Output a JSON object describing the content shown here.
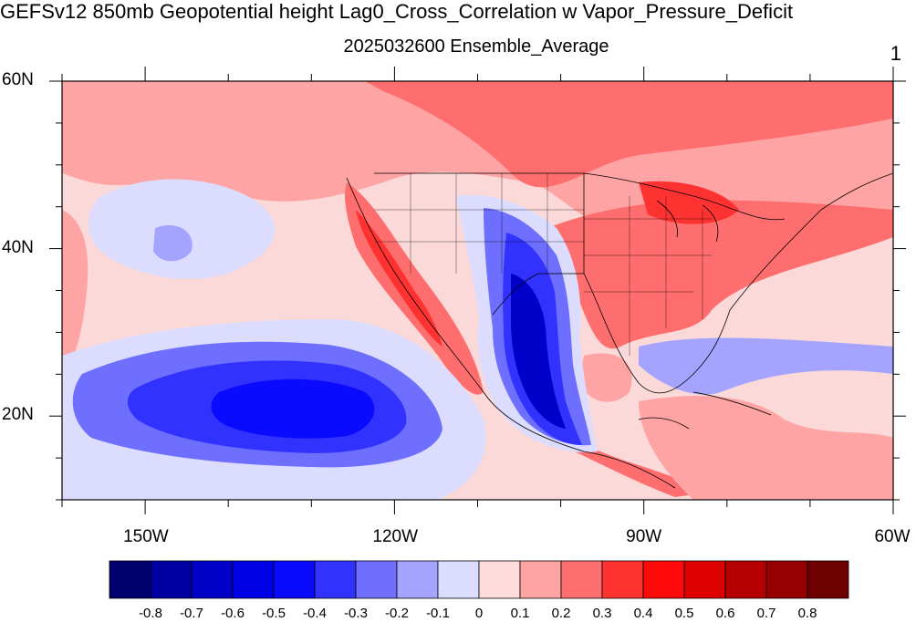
{
  "header": {
    "title": "GEFSv12 850mb Geopotential height Lag0_Cross_Correlation w Vapor_Pressure_Deficit",
    "subtitle": "2025032600 Ensemble_Average",
    "corner_label": "1"
  },
  "map": {
    "lon_range": [
      -160,
      -60
    ],
    "lat_range": [
      10,
      60
    ],
    "lat_ticks": [
      {
        "value": 60,
        "label": "60N"
      },
      {
        "value": 40,
        "label": "40N"
      },
      {
        "value": 20,
        "label": "20N"
      }
    ],
    "lon_ticks": [
      {
        "value": -150,
        "label": "150W"
      },
      {
        "value": -120,
        "label": "120W"
      },
      {
        "value": -90,
        "label": "90W"
      },
      {
        "value": -60,
        "label": "60W"
      }
    ],
    "ocean_color": "#fbd9d9"
  },
  "colorbar": {
    "labels": [
      "-0.8",
      "-0.7",
      "-0.6",
      "-0.5",
      "-0.4",
      "-0.3",
      "-0.2",
      "-0.1",
      "0",
      "0.1",
      "0.2",
      "0.3",
      "0.4",
      "0.5",
      "0.6",
      "0.7",
      "0.8"
    ],
    "colors": [
      "#00006e",
      "#0000a0",
      "#0000c8",
      "#0000e6",
      "#0a0aff",
      "#3232ff",
      "#6e6eff",
      "#a4a4ff",
      "#dcdcff",
      "#ffdcdc",
      "#ffa4a4",
      "#ff6e6e",
      "#ff3232",
      "#ff0a0a",
      "#dc0000",
      "#b40000",
      "#960000",
      "#6e0000"
    ]
  }
}
